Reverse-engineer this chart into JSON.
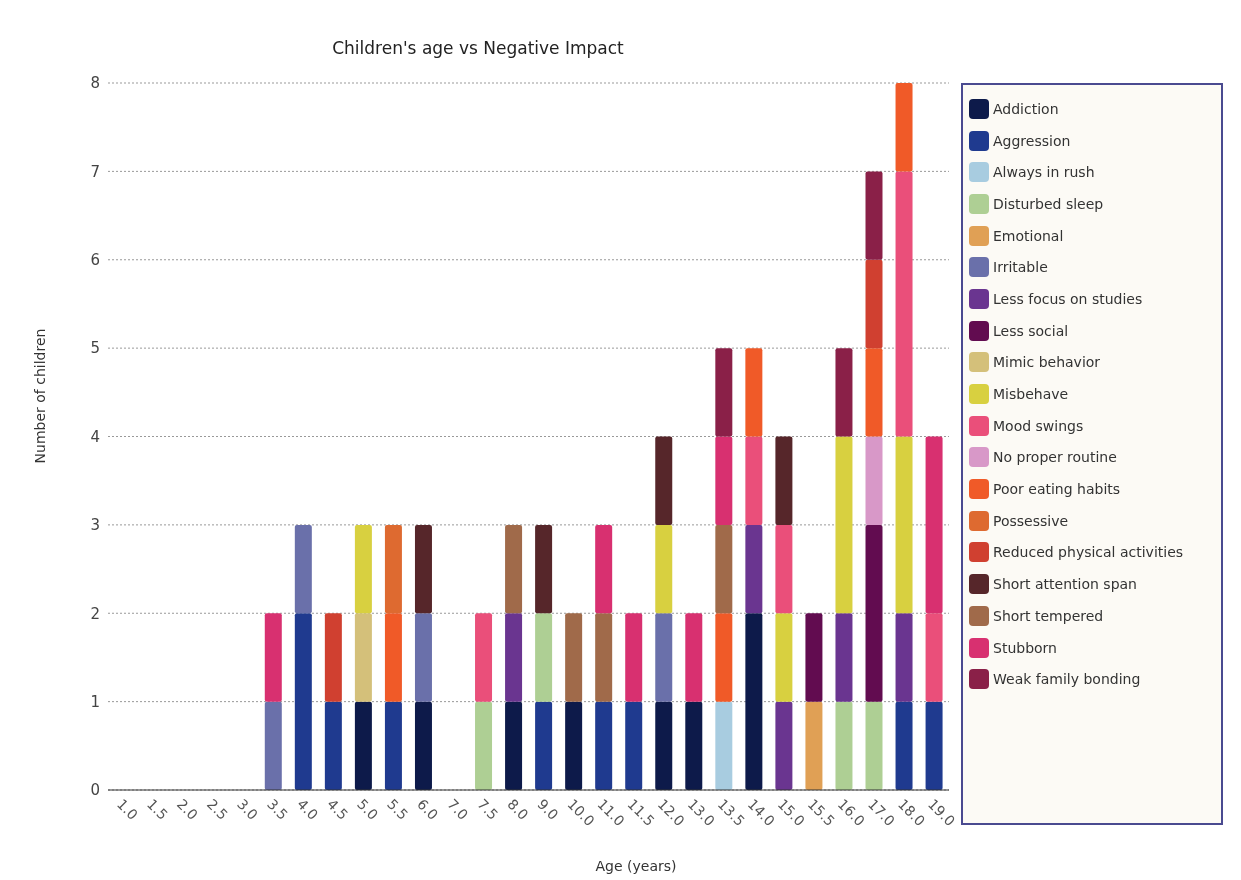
{
  "chart_data": {
    "type": "bar",
    "title": "Children's age vs Negative Impact",
    "xlabel": "Age (years)",
    "ylabel": "Number of children",
    "stacked": true,
    "grid": "y",
    "legend": "right",
    "ylim": [
      0,
      8
    ],
    "yticks": [
      0,
      1,
      2,
      3,
      4,
      5,
      6,
      7,
      8
    ],
    "categories": [
      "1.0",
      "1.5",
      "2.0",
      "2.5",
      "3.0",
      "3.5",
      "4.0",
      "4.5",
      "5.0",
      "5.5",
      "6.0",
      "7.0",
      "7.5",
      "8.0",
      "9.0",
      "10.0",
      "11.0",
      "11.5",
      "12.0",
      "13.0",
      "13.5",
      "14.0",
      "15.0",
      "15.5",
      "16.0",
      "17.0",
      "18.0",
      "19.0"
    ],
    "series": [
      {
        "name": "Addiction",
        "color": "#0d1a4a",
        "values": [
          null,
          null,
          null,
          null,
          null,
          null,
          null,
          null,
          1,
          null,
          1,
          null,
          null,
          1,
          null,
          1,
          null,
          null,
          1,
          1,
          null,
          2,
          null,
          null,
          null,
          null,
          null,
          null
        ]
      },
      {
        "name": "Aggression",
        "color": "#1f3a8f",
        "values": [
          null,
          null,
          null,
          null,
          null,
          null,
          2,
          1,
          null,
          1,
          null,
          null,
          null,
          null,
          1,
          null,
          1,
          1,
          null,
          null,
          null,
          null,
          null,
          null,
          null,
          null,
          1,
          1
        ]
      },
      {
        "name": "Always in rush",
        "color": "#a8cce0",
        "values": [
          null,
          null,
          null,
          null,
          null,
          null,
          null,
          null,
          null,
          null,
          null,
          null,
          null,
          null,
          null,
          null,
          null,
          null,
          null,
          null,
          1,
          null,
          null,
          null,
          null,
          null,
          null,
          null
        ]
      },
      {
        "name": "Disturbed sleep",
        "color": "#aecf94",
        "values": [
          null,
          null,
          null,
          null,
          null,
          null,
          null,
          null,
          null,
          null,
          null,
          null,
          1,
          null,
          1,
          null,
          null,
          null,
          null,
          null,
          null,
          null,
          null,
          null,
          1,
          1,
          null,
          null
        ]
      },
      {
        "name": "Emotional",
        "color": "#e0a055",
        "values": [
          null,
          null,
          null,
          null,
          null,
          null,
          null,
          null,
          null,
          null,
          null,
          null,
          null,
          null,
          null,
          null,
          null,
          null,
          null,
          null,
          null,
          null,
          null,
          1,
          null,
          null,
          null,
          null
        ]
      },
      {
        "name": "Irritable",
        "color": "#6a70aa",
        "values": [
          null,
          null,
          null,
          null,
          null,
          1,
          1,
          null,
          null,
          null,
          1,
          null,
          null,
          null,
          null,
          null,
          null,
          null,
          1,
          null,
          null,
          null,
          null,
          null,
          null,
          null,
          null,
          null
        ]
      },
      {
        "name": "Less focus on studies",
        "color": "#6a3590",
        "values": [
          null,
          null,
          null,
          null,
          null,
          null,
          null,
          null,
          null,
          null,
          null,
          null,
          null,
          1,
          null,
          null,
          null,
          null,
          null,
          null,
          null,
          1,
          1,
          null,
          1,
          null,
          1,
          null
        ]
      },
      {
        "name": "Less social",
        "color": "#620c50",
        "values": [
          null,
          null,
          null,
          null,
          null,
          null,
          null,
          null,
          null,
          null,
          null,
          null,
          null,
          null,
          null,
          null,
          null,
          null,
          null,
          null,
          null,
          null,
          null,
          1,
          null,
          2,
          null,
          null
        ]
      },
      {
        "name": "Mimic behavior",
        "color": "#d4c07a",
        "values": [
          null,
          null,
          null,
          null,
          null,
          null,
          null,
          null,
          1,
          null,
          null,
          null,
          null,
          null,
          null,
          null,
          null,
          null,
          null,
          null,
          null,
          null,
          null,
          null,
          null,
          null,
          null,
          null
        ]
      },
      {
        "name": "Misbehave",
        "color": "#d8d040",
        "values": [
          null,
          null,
          null,
          null,
          null,
          null,
          null,
          null,
          1,
          null,
          null,
          null,
          null,
          null,
          null,
          null,
          null,
          null,
          1,
          null,
          null,
          null,
          1,
          null,
          2,
          null,
          2,
          null
        ]
      },
      {
        "name": "Mood swings",
        "color": "#ea4f7a",
        "values": [
          null,
          null,
          null,
          null,
          null,
          null,
          null,
          null,
          null,
          null,
          null,
          null,
          1,
          null,
          null,
          null,
          null,
          null,
          null,
          null,
          null,
          1,
          1,
          null,
          null,
          null,
          3,
          1
        ]
      },
      {
        "name": "No proper routine",
        "color": "#d898c8",
        "values": [
          null,
          null,
          null,
          null,
          null,
          null,
          null,
          null,
          null,
          null,
          null,
          null,
          null,
          null,
          null,
          null,
          null,
          null,
          null,
          null,
          null,
          null,
          null,
          null,
          null,
          1,
          null,
          null
        ]
      },
      {
        "name": "Poor eating habits",
        "color": "#f05a28",
        "values": [
          null,
          null,
          null,
          null,
          null,
          null,
          null,
          null,
          null,
          1,
          null,
          null,
          null,
          null,
          null,
          null,
          null,
          null,
          null,
          null,
          1,
          1,
          null,
          null,
          null,
          1,
          1,
          null
        ]
      },
      {
        "name": "Possessive",
        "color": "#de6a30",
        "values": [
          null,
          null,
          null,
          null,
          null,
          null,
          null,
          null,
          null,
          1,
          null,
          null,
          null,
          null,
          null,
          null,
          null,
          null,
          null,
          null,
          null,
          null,
          null,
          null,
          null,
          null,
          null,
          null
        ]
      },
      {
        "name": "Reduced physical activities",
        "color": "#d04030",
        "values": [
          null,
          null,
          null,
          null,
          null,
          null,
          null,
          1,
          null,
          null,
          null,
          null,
          null,
          null,
          null,
          null,
          null,
          null,
          null,
          null,
          null,
          null,
          null,
          null,
          null,
          1,
          null,
          null
        ]
      },
      {
        "name": "Short attention span",
        "color": "#56262a",
        "values": [
          null,
          null,
          null,
          null,
          null,
          null,
          null,
          null,
          null,
          null,
          1,
          null,
          null,
          null,
          1,
          null,
          null,
          null,
          1,
          null,
          null,
          null,
          1,
          null,
          null,
          null,
          null,
          null
        ]
      },
      {
        "name": "Short tempered",
        "color": "#a06a4a",
        "values": [
          null,
          null,
          null,
          null,
          null,
          null,
          null,
          null,
          null,
          null,
          null,
          null,
          null,
          1,
          null,
          1,
          1,
          null,
          null,
          null,
          1,
          null,
          null,
          null,
          null,
          null,
          null,
          null
        ]
      },
      {
        "name": "Stubborn",
        "color": "#d83070",
        "values": [
          null,
          null,
          null,
          null,
          null,
          1,
          null,
          null,
          null,
          null,
          null,
          null,
          null,
          null,
          null,
          null,
          1,
          1,
          null,
          1,
          1,
          null,
          null,
          null,
          null,
          null,
          null,
          2
        ]
      },
      {
        "name": "Weak family bonding",
        "color": "#8a2048",
        "values": [
          null,
          null,
          null,
          null,
          null,
          null,
          null,
          null,
          null,
          null,
          null,
          null,
          null,
          null,
          null,
          null,
          null,
          null,
          null,
          null,
          1,
          null,
          null,
          null,
          1,
          1,
          null,
          null
        ]
      }
    ]
  }
}
